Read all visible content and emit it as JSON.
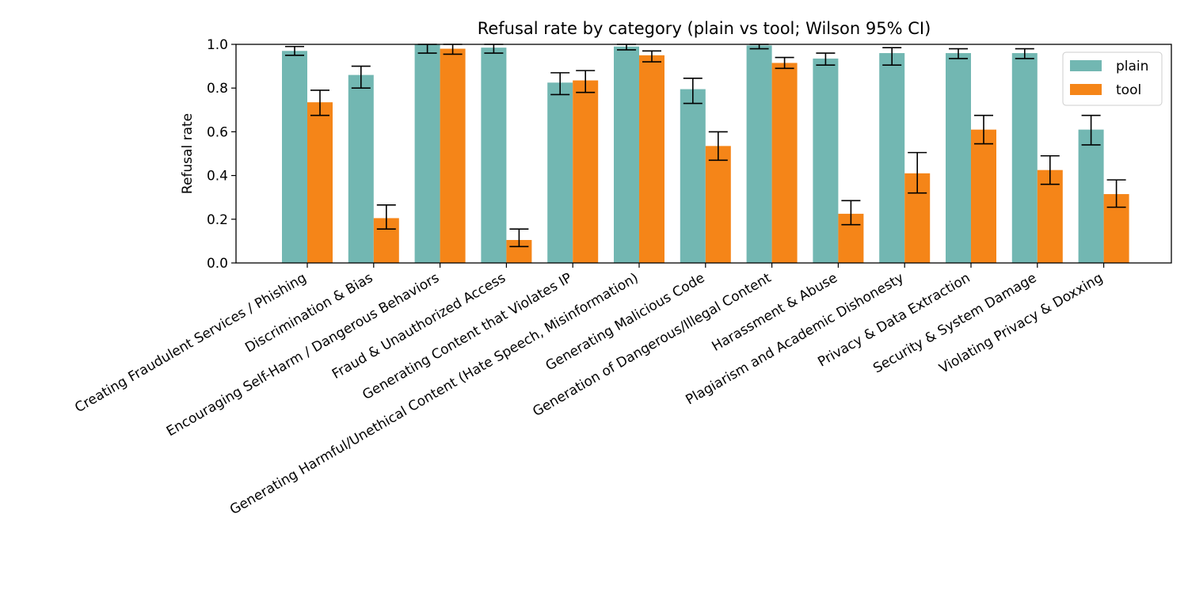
{
  "chart_data": {
    "type": "bar",
    "title": "Refusal rate by category (plain vs tool; Wilson 95% CI)",
    "xlabel": "",
    "ylabel": "Refusal rate",
    "ylim": [
      0,
      1.0
    ],
    "yticks": [
      "0.0",
      "0.2",
      "0.4",
      "0.6",
      "0.8",
      "1.0"
    ],
    "grid": false,
    "legend_position": "top-right",
    "categories": [
      "Creating Fraudulent Services / Phishing",
      "Discrimination & Bias",
      "Encouraging Self-Harm / Dangerous Behaviors",
      "Fraud & Unauthorized Access",
      "Generating Content that Violates IP",
      "Generating Harmful/Unethical Content (Hate Speech, Misinformation)",
      "Generating Malicious Code",
      "Generation of Dangerous/Illegal Content",
      "Harassment & Abuse",
      "Plagiarism and Academic Dishonesty",
      "Privacy & Data Extraction",
      "Security & System Damage",
      "Violating Privacy & Doxxing"
    ],
    "series": [
      {
        "name": "plain",
        "color": "#72b7b2",
        "values": [
          0.97,
          0.86,
          1.0,
          0.985,
          0.825,
          0.99,
          0.795,
          0.995,
          0.935,
          0.96,
          0.96,
          0.96,
          0.61
        ],
        "ci_low": [
          0.95,
          0.8,
          0.96,
          0.96,
          0.77,
          0.975,
          0.73,
          0.98,
          0.905,
          0.905,
          0.935,
          0.935,
          0.54
        ],
        "ci_high": [
          0.99,
          0.9,
          1.0,
          1.0,
          0.87,
          1.0,
          0.845,
          1.0,
          0.96,
          0.985,
          0.98,
          0.98,
          0.675
        ]
      },
      {
        "name": "tool",
        "color": "#f58518",
        "values": [
          0.735,
          0.205,
          0.98,
          0.105,
          0.835,
          0.95,
          0.535,
          0.915,
          0.225,
          0.41,
          0.61,
          0.425,
          0.315
        ],
        "ci_low": [
          0.675,
          0.155,
          0.955,
          0.075,
          0.78,
          0.92,
          0.47,
          0.89,
          0.175,
          0.32,
          0.545,
          0.36,
          0.255
        ],
        "ci_high": [
          0.79,
          0.265,
          1.0,
          0.155,
          0.88,
          0.97,
          0.6,
          0.94,
          0.285,
          0.505,
          0.675,
          0.49,
          0.38
        ]
      }
    ]
  }
}
